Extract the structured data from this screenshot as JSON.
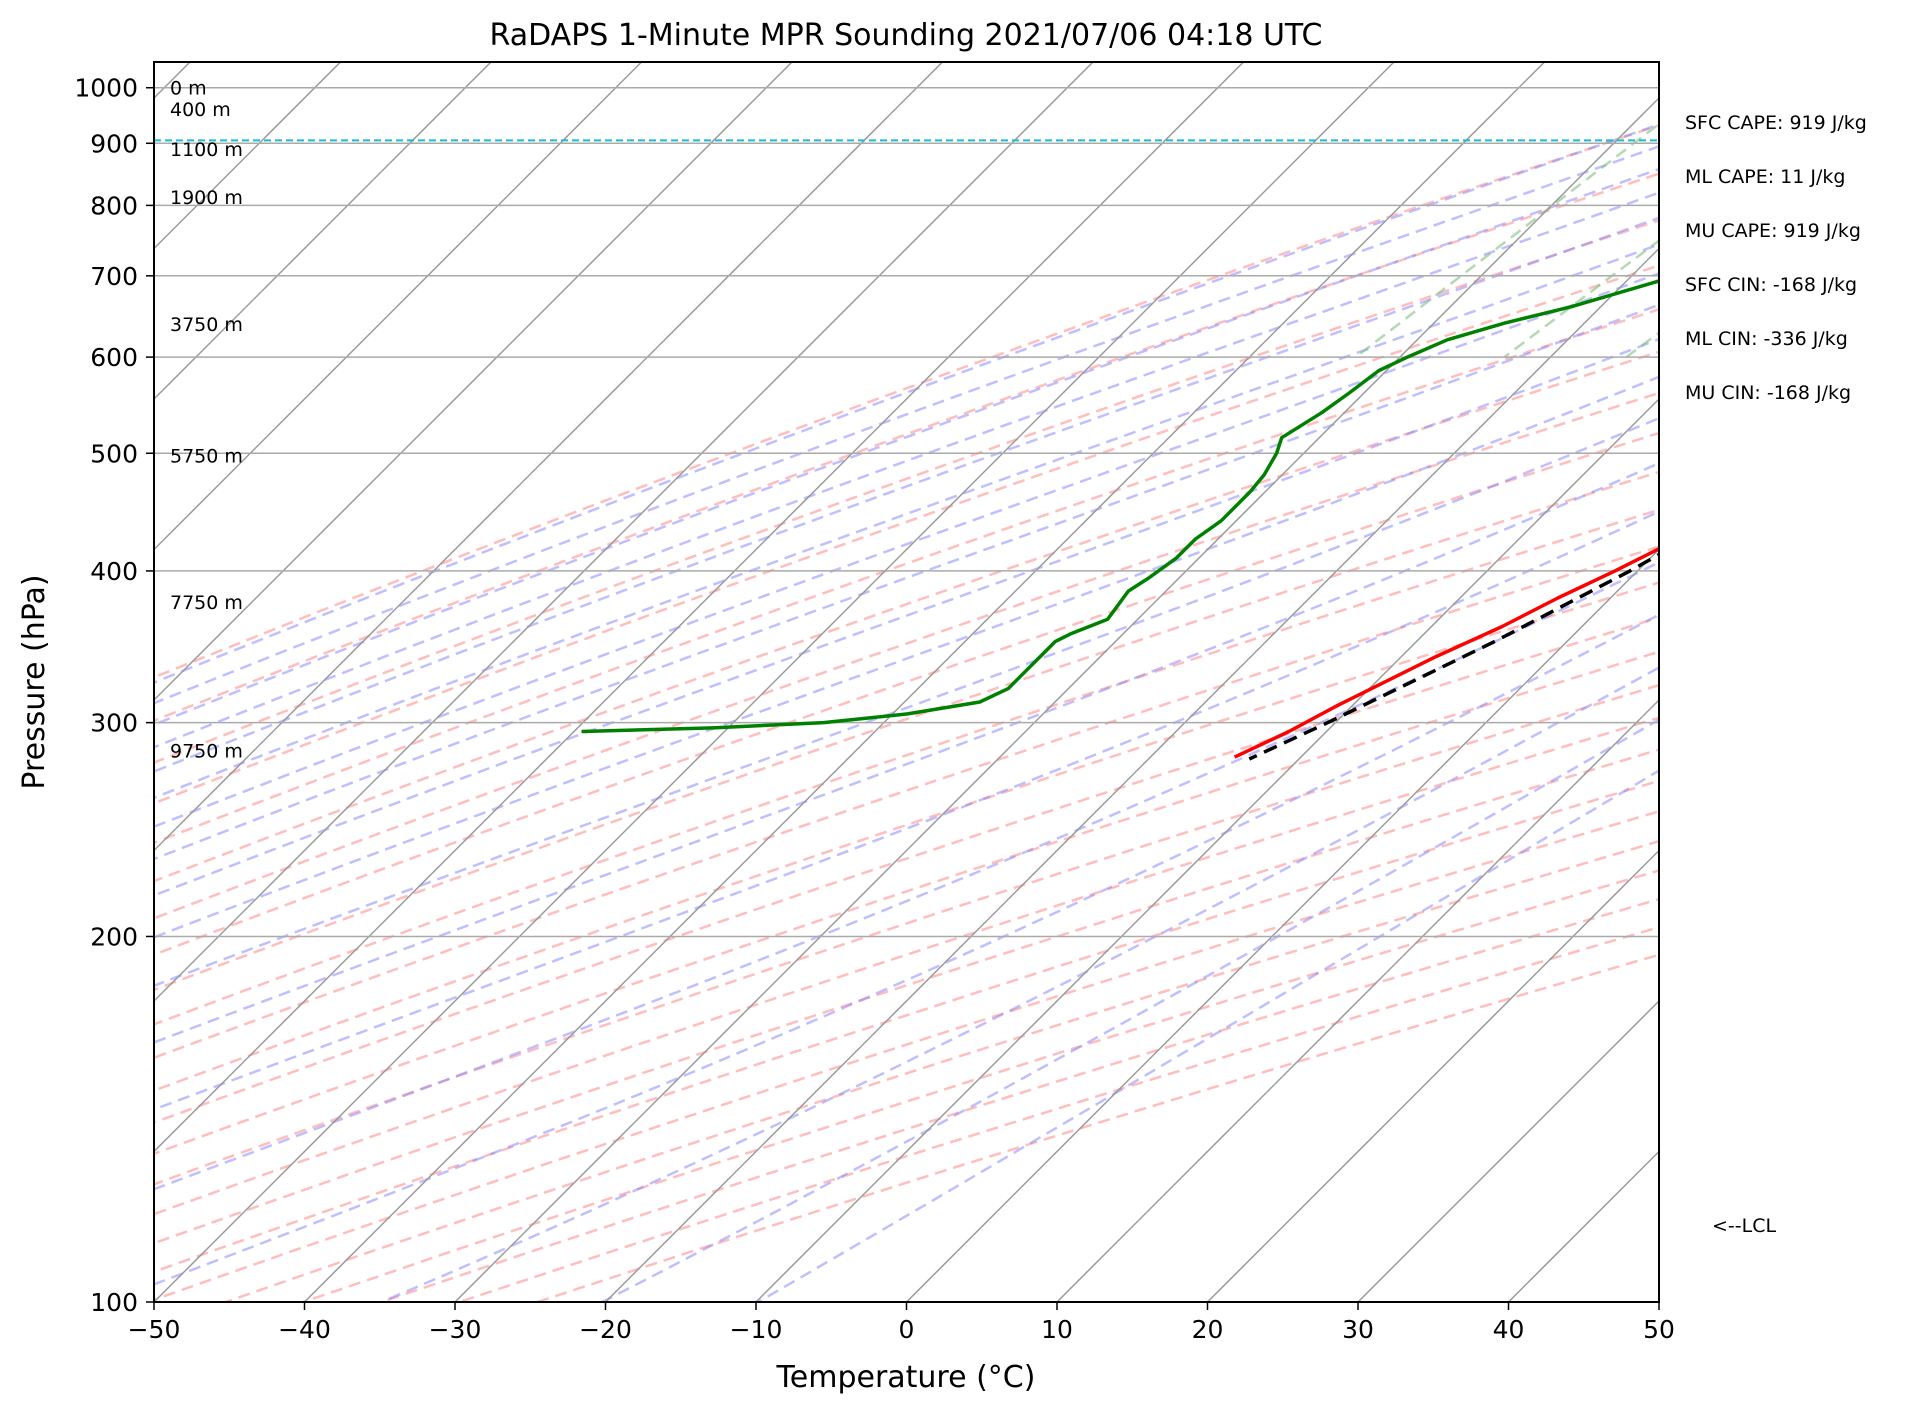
{
  "chart_data": {
    "type": "line",
    "title": "RaDAPS 1-Minute MPR Sounding 2021/07/06 04:18 UTC",
    "xlabel": "Temperature (°C)",
    "ylabel": "Pressure (hPa)",
    "xlim": [
      -50,
      50
    ],
    "ylim": [
      1050,
      100
    ],
    "y_scale": "log",
    "x_ticks": [
      "−50",
      "−40",
      "−30",
      "−20",
      "−10",
      "0",
      "10",
      "20",
      "30",
      "40",
      "50"
    ],
    "x_tick_values": [
      -50,
      -40,
      -30,
      -20,
      -10,
      0,
      10,
      20,
      30,
      40,
      50
    ],
    "y_ticks": [
      "100",
      "200",
      "300",
      "400",
      "500",
      "600",
      "700",
      "800",
      "900",
      "1000"
    ],
    "y_tick_values": [
      100,
      200,
      300,
      400,
      500,
      600,
      700,
      800,
      900,
      1000
    ],
    "grid": true,
    "skew_degrees": 45,
    "series": [
      {
        "id": "temperature",
        "color": "#ff0000",
        "style": "solid",
        "points": [
          [
            995,
            26.5
          ],
          [
            990,
            28.5
          ],
          [
            980,
            28.8
          ],
          [
            965,
            28.3
          ],
          [
            945,
            26.5
          ],
          [
            920,
            24.0
          ],
          [
            900,
            22.0
          ],
          [
            885,
            20.5
          ],
          [
            860,
            19.2
          ],
          [
            845,
            19.0
          ],
          [
            815,
            18.5
          ],
          [
            780,
            16.5
          ],
          [
            740,
            14.8
          ],
          [
            700,
            13.3
          ],
          [
            660,
            11.5
          ],
          [
            630,
            10.5
          ],
          [
            600,
            10.3
          ],
          [
            580,
            9.9
          ],
          [
            550,
            8.8
          ],
          [
            520,
            7.0
          ],
          [
            490,
            5.0
          ],
          [
            470,
            3.7
          ],
          [
            450,
            2.5
          ],
          [
            430,
            1.0
          ],
          [
            400,
            -1.5
          ],
          [
            380,
            -3.5
          ],
          [
            360,
            -5.3
          ],
          [
            340,
            -7.7
          ],
          [
            310,
            -11.0
          ],
          [
            295,
            -12.5
          ],
          [
            281,
            -14.4
          ]
        ]
      },
      {
        "id": "dewpoint",
        "color": "#008000",
        "style": "solid",
        "points": [
          [
            995,
            12.3
          ],
          [
            990,
            10.5
          ],
          [
            980,
            9.0
          ],
          [
            965,
            7.5
          ],
          [
            955,
            5.5
          ],
          [
            940,
            5.5
          ],
          [
            920,
            6.0
          ],
          [
            905,
            4.5
          ],
          [
            880,
            4.0
          ],
          [
            860,
            4.5
          ],
          [
            835,
            4.0
          ],
          [
            815,
            3.7
          ],
          [
            790,
            1.5
          ],
          [
            740,
            -7.5
          ],
          [
            700,
            -17.0
          ],
          [
            660,
            -22.0
          ],
          [
            640,
            -25.3
          ],
          [
            620,
            -28.0
          ],
          [
            600,
            -29.5
          ],
          [
            585,
            -30.5
          ],
          [
            560,
            -31.0
          ],
          [
            540,
            -31.5
          ],
          [
            515,
            -32.5
          ],
          [
            500,
            -31.8
          ],
          [
            480,
            -31.2
          ],
          [
            465,
            -31.0
          ],
          [
            440,
            -31.0
          ],
          [
            425,
            -31.5
          ],
          [
            410,
            -31.5
          ],
          [
            395,
            -32.0
          ],
          [
            385,
            -32.5
          ],
          [
            365,
            -32.0
          ],
          [
            355,
            -33.5
          ],
          [
            350,
            -34.0
          ],
          [
            340,
            -34.0
          ],
          [
            332,
            -34.0
          ],
          [
            320,
            -34.0
          ],
          [
            312,
            -35.0
          ],
          [
            305,
            -39.0
          ],
          [
            300,
            -44.0
          ],
          [
            297,
            -51.0
          ],
          [
            295,
            -59.5
          ]
        ]
      },
      {
        "id": "parcel-profile",
        "color": "#000000",
        "style": "dashed",
        "points": [
          [
            995,
            26.5
          ],
          [
            960,
            23.5
          ],
          [
            905,
            18.8
          ],
          [
            860,
            17.2
          ],
          [
            800,
            15.0
          ],
          [
            760,
            13.7
          ],
          [
            700,
            12.3
          ],
          [
            640,
            10.5
          ],
          [
            600,
            9.2
          ],
          [
            550,
            7.4
          ],
          [
            500,
            5.2
          ],
          [
            450,
            2.7
          ],
          [
            400,
            -0.5
          ],
          [
            350,
            -4.8
          ],
          [
            300,
            -10.5
          ],
          [
            280,
            -13.3
          ]
        ]
      }
    ],
    "reference_lines": {
      "dry_adiabats_color": "#ff9999",
      "moist_adiabats_color": "#8080ff",
      "mixing_ratio_color": "#80c080",
      "isotherm_color": "#999999",
      "lcl_color": "#17becf",
      "lcl_pressure": 905
    },
    "height_labels": [
      {
        "text": "0 m",
        "pressure": 995
      },
      {
        "text": "400 m",
        "pressure": 955
      },
      {
        "text": "1100 m",
        "pressure": 885
      },
      {
        "text": "1900 m",
        "pressure": 808
      },
      {
        "text": "3750 m",
        "pressure": 635
      },
      {
        "text": "5750 m",
        "pressure": 495
      },
      {
        "text": "7750 m",
        "pressure": 375
      },
      {
        "text": "9750 m",
        "pressure": 283
      }
    ],
    "lcl_label": "<--LCL",
    "stats": [
      "SFC CAPE: 919 J/kg",
      "ML CAPE: 11 J/kg",
      "MU CAPE: 919 J/kg",
      "SFC CIN: -168 J/kg",
      "ML CIN: -336 J/kg",
      "MU CIN: -168 J/kg"
    ]
  }
}
